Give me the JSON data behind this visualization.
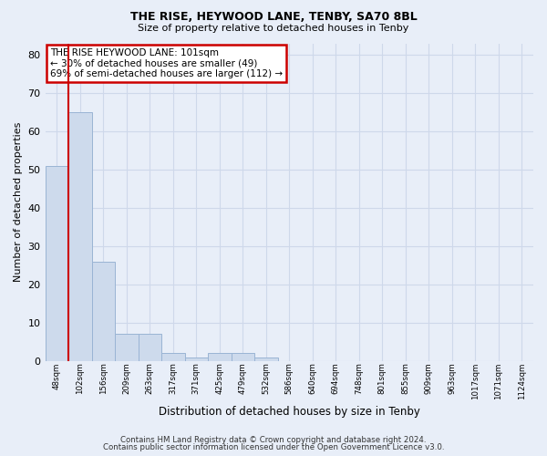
{
  "title1": "THE RISE, HEYWOOD LANE, TENBY, SA70 8BL",
  "title2": "Size of property relative to detached houses in Tenby",
  "xlabel": "Distribution of detached houses by size in Tenby",
  "ylabel": "Number of detached properties",
  "bar_labels": [
    "48sqm",
    "102sqm",
    "156sqm",
    "209sqm",
    "263sqm",
    "317sqm",
    "371sqm",
    "425sqm",
    "479sqm",
    "532sqm",
    "586sqm",
    "640sqm",
    "694sqm",
    "748sqm",
    "801sqm",
    "855sqm",
    "909sqm",
    "963sqm",
    "1017sqm",
    "1071sqm",
    "1124sqm"
  ],
  "bar_values": [
    51,
    65,
    26,
    7,
    7,
    2,
    1,
    2,
    2,
    1,
    0,
    0,
    0,
    0,
    0,
    0,
    0,
    0,
    0,
    0,
    0
  ],
  "bar_color": "#cddaec",
  "bar_edge_color": "#9ab4d4",
  "red_line_x": 1,
  "annotation_line1": "THE RISE HEYWOOD LANE: 101sqm",
  "annotation_line2": "← 30% of detached houses are smaller (49)",
  "annotation_line3": "69% of semi-detached houses are larger (112) →",
  "annotation_box_color": "#ffffff",
  "annotation_edge_color": "#cc0000",
  "red_line_color": "#cc0000",
  "grid_color": "#ced8ea",
  "background_color": "#e8eef8",
  "footer_text1": "Contains HM Land Registry data © Crown copyright and database right 2024.",
  "footer_text2": "Contains public sector information licensed under the Open Government Licence v3.0.",
  "ylim": [
    0,
    83
  ],
  "yticks": [
    0,
    10,
    20,
    30,
    40,
    50,
    60,
    70,
    80
  ]
}
